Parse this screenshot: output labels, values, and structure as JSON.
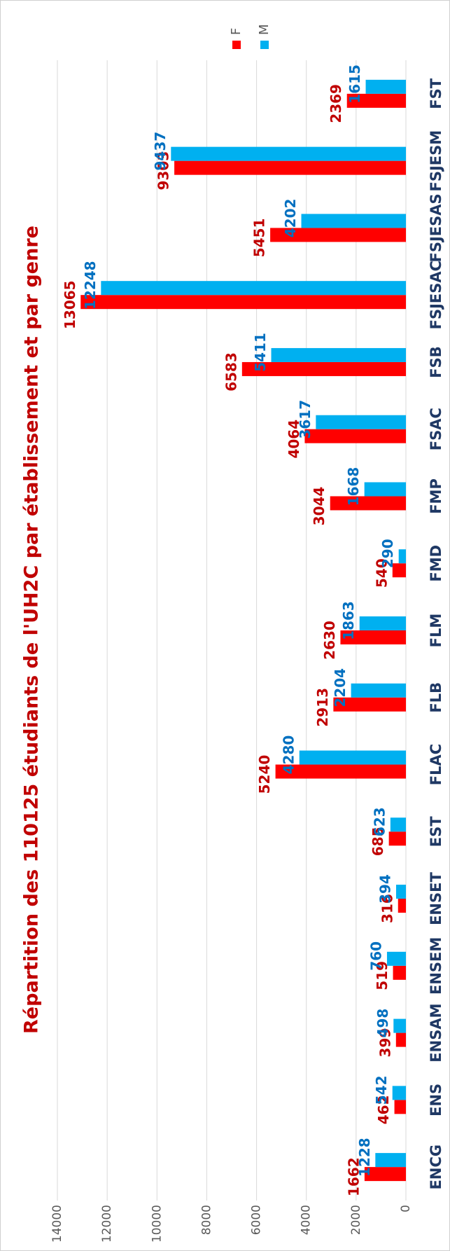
{
  "chart_data": {
    "type": "bar",
    "title": "Répartition des 110125 étudiants de l'UH2C par établissement et par genre",
    "categories": [
      "ENCG",
      "ENS",
      "ENSAM",
      "ENSEM",
      "ENSET",
      "EST",
      "FLAC",
      "FLB",
      "FLM",
      "FMD",
      "FMP",
      "FSAC",
      "FSB",
      "FSJESAC",
      "FSJESAS",
      "FSJESM",
      "FST"
    ],
    "series": [
      {
        "name": "F",
        "color": "#ff0000",
        "label_color": "#c00000",
        "values": [
          1662,
          462,
          399,
          519,
          316,
          685,
          5240,
          2913,
          2630,
          540,
          3044,
          4064,
          6583,
          13065,
          5451,
          9303,
          2369
        ]
      },
      {
        "name": "M",
        "color": "#00b0f0",
        "label_color": "#0070c0",
        "values": [
          1228,
          542,
          498,
          760,
          394,
          623,
          4280,
          2204,
          1863,
          290,
          1668,
          3617,
          5411,
          12248,
          4202,
          9437,
          1615
        ]
      }
    ],
    "ylim": [
      0,
      14000
    ],
    "yticks": [
      0,
      2000,
      4000,
      6000,
      8000,
      10000,
      12000,
      14000
    ],
    "grid": true,
    "legend": "right",
    "rotation": -90
  }
}
